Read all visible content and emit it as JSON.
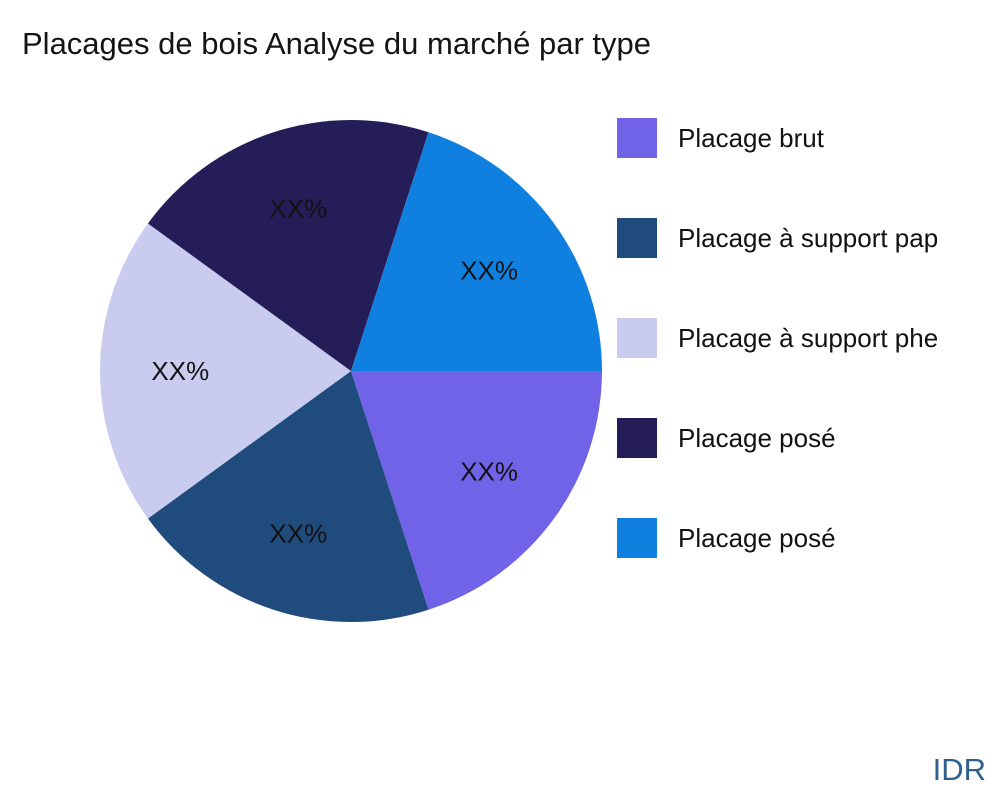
{
  "chart_data": {
    "type": "pie",
    "title": "Placages de bois Analyse du marché par type",
    "slices": [
      {
        "label": "Placage brut",
        "value": 20,
        "value_label": "XX%",
        "color": "#7163E8"
      },
      {
        "label": "Placage à support pap",
        "value": 20,
        "value_label": "XX%",
        "color": "#1F4B7D"
      },
      {
        "label": "Placage à support phe",
        "value": 20,
        "value_label": "XX%",
        "color": "#C9CCEF"
      },
      {
        "label": "Placage posé",
        "value": 20,
        "value_label": "XX%",
        "color": "#251D58"
      },
      {
        "label": "Placage posé",
        "value": 20,
        "value_label": "XX%",
        "color": "#1080E0"
      }
    ],
    "start_angle_deg": 0,
    "direction": "clockwise",
    "legend_position": "right",
    "pct_label_color": "#121212",
    "title_color": "#141414"
  },
  "watermark": {
    "text": "IDR",
    "color": "#2F5F8C"
  }
}
